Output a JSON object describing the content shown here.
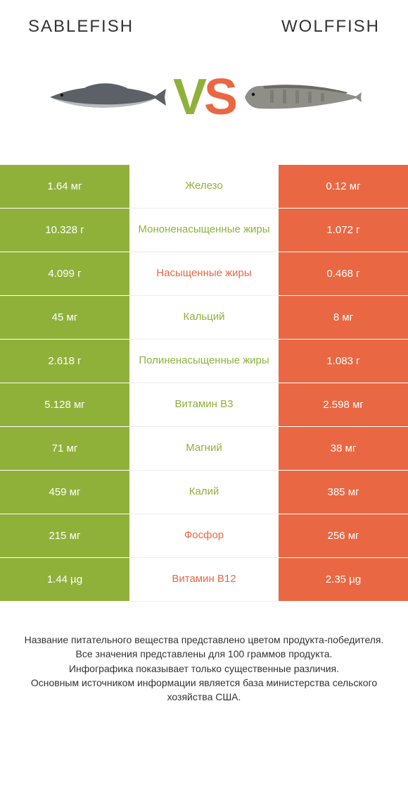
{
  "colors": {
    "green": "#8fb13a",
    "orange": "#e96843",
    "text": "#333333",
    "bg": "#ffffff"
  },
  "header": {
    "left": "Sablefish",
    "right": "Wolffish"
  },
  "vs": {
    "v": "V",
    "s": "S"
  },
  "rows": [
    {
      "left": "1.64 мг",
      "center": "Железо",
      "right": "0.12 мг",
      "winner": "left"
    },
    {
      "left": "10.328 г",
      "center": "Мононенасыщенные жиры",
      "right": "1.072 г",
      "winner": "left"
    },
    {
      "left": "4.099 г",
      "center": "Насыщенные жиры",
      "right": "0.468 г",
      "winner": "right"
    },
    {
      "left": "45 мг",
      "center": "Кальций",
      "right": "8 мг",
      "winner": "left"
    },
    {
      "left": "2.618 г",
      "center": "Полиненасыщенные жиры",
      "right": "1.083 г",
      "winner": "left"
    },
    {
      "left": "5.128 мг",
      "center": "Витамин B3",
      "right": "2.598 мг",
      "winner": "left"
    },
    {
      "left": "71 мг",
      "center": "Магний",
      "right": "38 мг",
      "winner": "left"
    },
    {
      "left": "459 мг",
      "center": "Калий",
      "right": "385 мг",
      "winner": "left"
    },
    {
      "left": "215 мг",
      "center": "Фосфор",
      "right": "256 мг",
      "winner": "right"
    },
    {
      "left": "1.44 µg",
      "center": "Витамин B12",
      "right": "2.35 µg",
      "winner": "right"
    }
  ],
  "footer": {
    "l1": "Название питательного вещества представлено цветом продукта-победителя.",
    "l2": "Все значения представлены для 100 граммов продукта.",
    "l3": "Инфографика показывает только существенные различия.",
    "l4": "Основным источником информации является база министерства сельского хозяйства США."
  },
  "fish_style": {
    "sablefish_fill": "#5b6166",
    "sablefish_belly": "#b8bcbf",
    "wolffish_fill": "#8f8e87",
    "wolffish_spot": "#6b6a63"
  }
}
